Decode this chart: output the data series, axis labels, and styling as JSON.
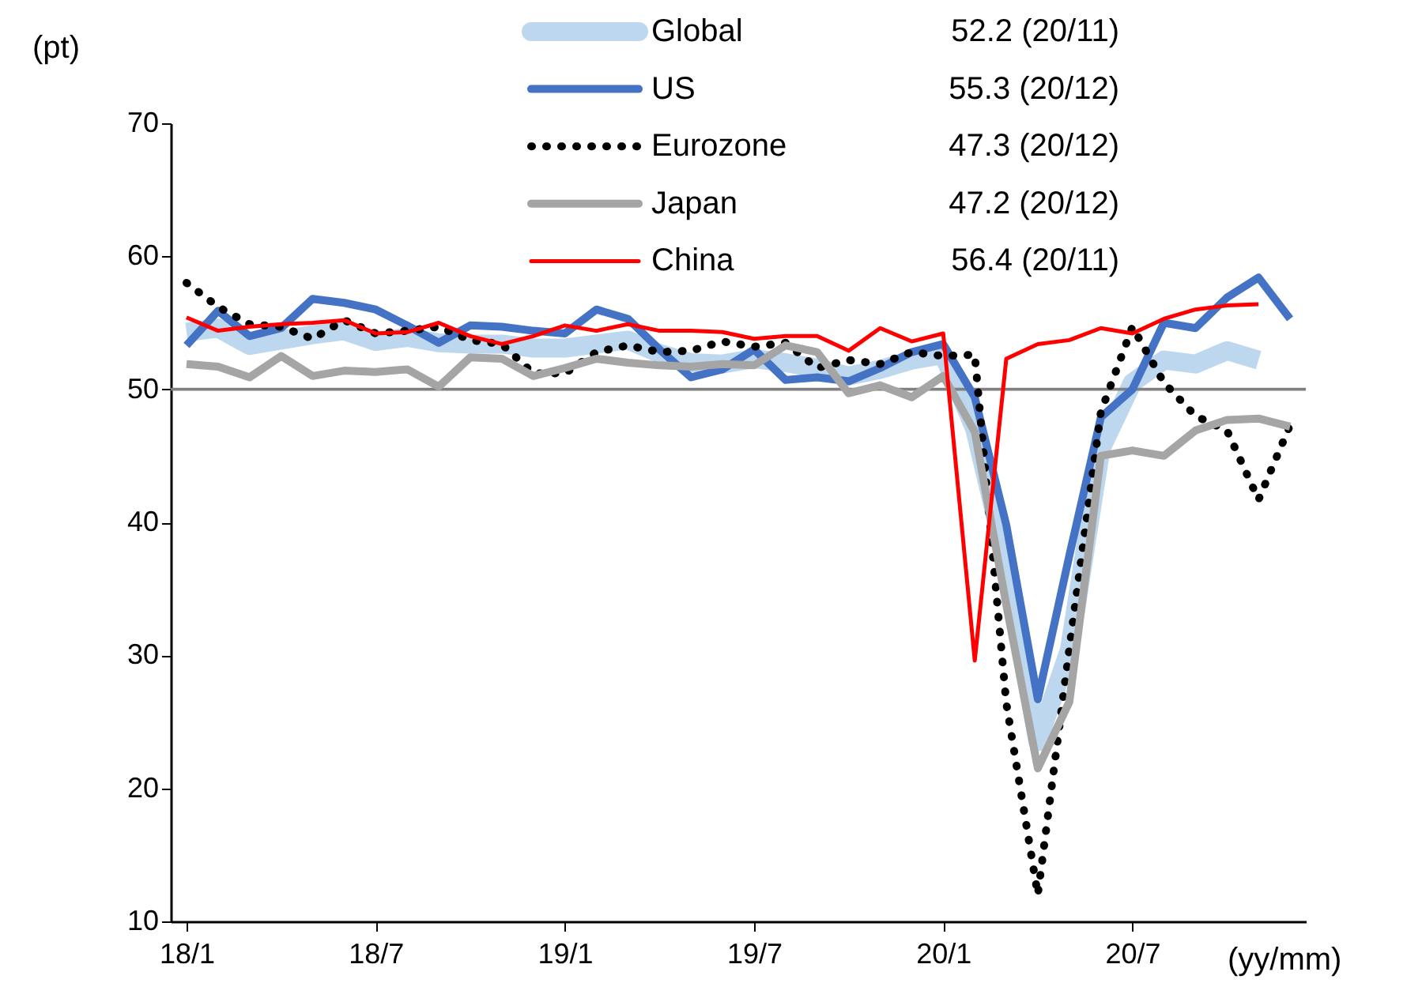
{
  "chart_data": {
    "type": "line",
    "categories": [
      "18/1",
      null,
      null,
      null,
      null,
      null,
      "18/7",
      null,
      null,
      null,
      null,
      null,
      "19/1",
      null,
      null,
      null,
      null,
      null,
      "19/7",
      null,
      null,
      null,
      null,
      null,
      "20/1",
      null,
      null,
      null,
      null,
      null,
      "20/7",
      null,
      null,
      null,
      null,
      null
    ],
    "xlabel": "(yy/mm)",
    "ylabel": "(pt)",
    "ylim": [
      10,
      70
    ],
    "yticks": [
      10,
      20,
      30,
      40,
      50,
      60,
      70
    ],
    "grid": false,
    "legend": "top",
    "series": [
      {
        "name": "Global",
        "color": "#bdd7ee",
        "line_style": "solid",
        "values": [
          54.3,
          54.6,
          53.3,
          53.7,
          54.1,
          54.4,
          53.6,
          53.9,
          53.5,
          53.4,
          53.4,
          53.1,
          53.1,
          53.4,
          53.7,
          52.7,
          52.0,
          51.9,
          52.3,
          52.0,
          51.6,
          51.0,
          51.5,
          52.2,
          52.6,
          47.0,
          37.0,
          23.5,
          30.4,
          45.5,
          50.5,
          52.2,
          51.9,
          52.9,
          52.2,
          null
        ]
      },
      {
        "name": "US",
        "color": "#4472c4",
        "line_style": "solid",
        "values": [
          53.3,
          55.9,
          54.0,
          54.6,
          56.8,
          56.5,
          56.0,
          54.8,
          53.5,
          54.8,
          54.7,
          54.4,
          54.2,
          56.0,
          55.3,
          53.0,
          50.9,
          51.5,
          53.0,
          50.7,
          50.9,
          50.6,
          51.6,
          52.8,
          53.4,
          49.4,
          39.8,
          26.7,
          37.5,
          47.9,
          50.0,
          55.0,
          54.6,
          56.9,
          58.4,
          55.3
        ]
      },
      {
        "name": "Eurozone",
        "color": "#000000",
        "line_style": "dotted",
        "values": [
          58.0,
          56.2,
          54.9,
          54.7,
          53.8,
          55.2,
          54.2,
          54.4,
          54.7,
          53.7,
          53.4,
          51.2,
          51.2,
          52.8,
          53.3,
          52.8,
          52.9,
          53.6,
          53.2,
          53.5,
          51.6,
          52.2,
          51.9,
          52.8,
          52.5,
          52.6,
          26.4,
          12.0,
          30.5,
          48.3,
          54.7,
          50.5,
          48.0,
          46.9,
          41.7,
          47.3
        ]
      },
      {
        "name": "Japan",
        "color": "#a5a5a5",
        "line_style": "solid",
        "values": [
          51.9,
          51.7,
          50.9,
          52.5,
          51.0,
          51.4,
          51.3,
          51.5,
          50.2,
          52.4,
          52.3,
          51.0,
          51.6,
          52.3,
          52.0,
          51.8,
          51.7,
          51.9,
          51.8,
          53.3,
          52.8,
          49.7,
          50.3,
          49.4,
          51.0,
          46.8,
          33.8,
          21.5,
          26.5,
          45.0,
          45.4,
          45.0,
          46.9,
          47.7,
          47.8,
          47.2
        ]
      },
      {
        "name": "China",
        "color": "#ff0000",
        "line_style": "solid",
        "values": [
          55.4,
          54.4,
          54.7,
          54.9,
          55.0,
          55.2,
          54.2,
          54.3,
          55.0,
          54.0,
          53.4,
          54.0,
          54.8,
          54.4,
          54.9,
          54.4,
          54.4,
          54.3,
          53.8,
          54.0,
          54.0,
          52.9,
          54.6,
          53.6,
          54.2,
          29.6,
          52.3,
          53.4,
          53.7,
          54.6,
          54.2,
          55.3,
          56.0,
          56.3,
          56.4,
          null
        ]
      }
    ],
    "ref_lines": [
      {
        "axis": "y",
        "value": 50,
        "color": "#808080"
      }
    ],
    "annotations": [
      "52.2 (20/11)",
      "55.3 (20/12)",
      "47.3 (20/12)",
      "47.2 (20/12)",
      "56.4 (20/11)"
    ]
  }
}
